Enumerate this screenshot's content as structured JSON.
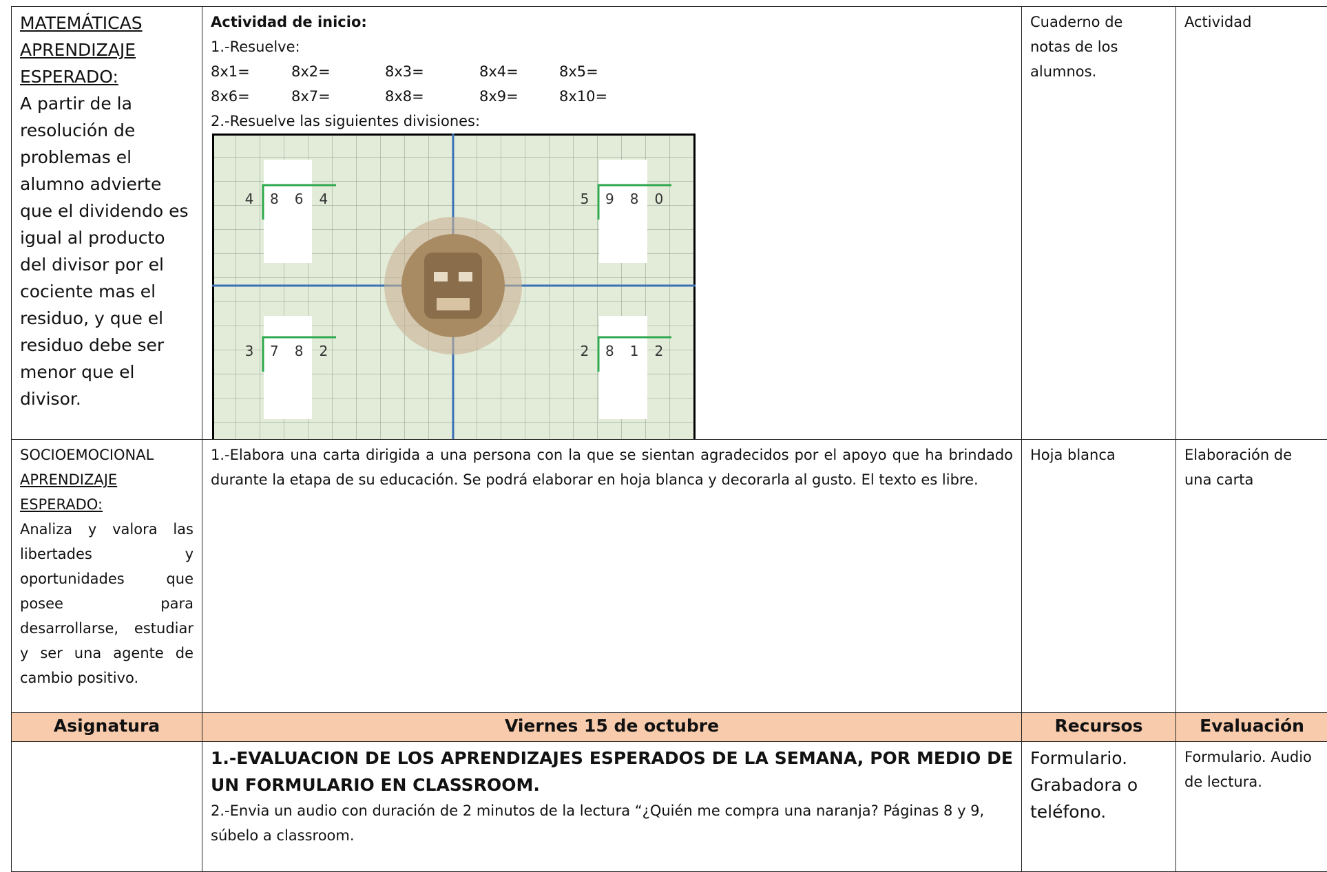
{
  "rows": [
    {
      "subject_heading": [
        "MATEMÁTICAS",
        "APRENDIZAJE",
        "ESPERADO:"
      ],
      "subject_text": "A partir de la resolución de problemas el alumno advierte que el dividendo es igual al producto del divisor por el cociente mas el residuo, y que el residuo debe ser menor que el divisor.",
      "activity_title": "Actividad de inicio:",
      "activity_item1": "1.-Resuelve:",
      "multiplications": [
        "8x1=",
        "8x2=",
        "8x3=",
        "8x4=",
        "8x5=",
        "8x6=",
        "8x7=",
        "8x8=",
        "8x9=",
        "8x10="
      ],
      "activity_item2": "2.-Resuelve las siguientes divisiones:",
      "divisions": [
        {
          "divisor": "4",
          "dividend": "864"
        },
        {
          "divisor": "5",
          "dividend": "980"
        },
        {
          "divisor": "3",
          "dividend": "782"
        },
        {
          "divisor": "2",
          "dividend": "812"
        }
      ],
      "resources": "Cuaderno de notas de los alumnos.",
      "evaluation": "Actividad"
    },
    {
      "subject_heading": [
        "SOCIOEMOCIONAL",
        "APRENDIZAJE",
        "ESPERADO:"
      ],
      "subject_text": "Analiza y valora las libertades y oportunidades que posee para desarrollarse, estudiar y ser una agente de cambio positivo.",
      "activity_text": "1.-Elabora una carta dirigida a una persona con la que se sientan agradecidos por el apoyo que ha brindado durante la etapa de su educación. Se podrá elaborar en hoja blanca y decorarla al gusto. El texto es libre.",
      "resources": "Hoja blanca",
      "evaluation": "Elaboración de una carta"
    }
  ],
  "header": [
    "Asignatura",
    "Viernes 15 de octubre",
    "Recursos",
    "Evaluación"
  ],
  "last_row": {
    "activity_bold": "1.-EVALUACION DE LOS APRENDIZAJES ESPERADOS DE LA SEMANA, POR MEDIO DE UN FORMULARIO EN CLASSROOM.",
    "activity_text": "2.-Envia un audio con duración de 2 minutos de la lectura “¿Quién me compra una naranja? Páginas 8 y 9, súbelo a classroom.",
    "resources": "Formulario. Grabadora o teléfono.",
    "evaluation": "Formulario. Audio de lectura."
  }
}
